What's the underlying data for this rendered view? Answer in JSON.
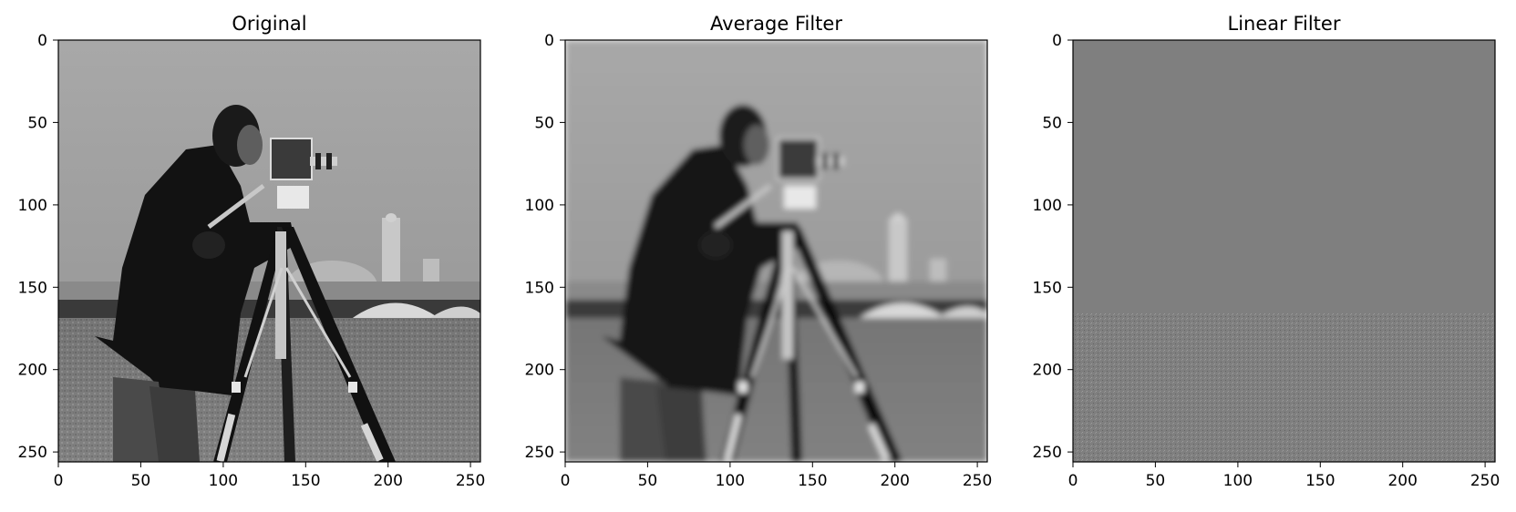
{
  "figure": {
    "panels": [
      {
        "title": "Original",
        "variant": "original",
        "x_ticks": [
          "0",
          "50",
          "100",
          "150",
          "200",
          "250"
        ],
        "y_ticks": [
          "0",
          "50",
          "100",
          "150",
          "200",
          "250"
        ]
      },
      {
        "title": "Average Filter",
        "variant": "average",
        "x_ticks": [
          "0",
          "50",
          "100",
          "150",
          "200",
          "250"
        ],
        "y_ticks": [
          "0",
          "50",
          "100",
          "150",
          "200",
          "250"
        ]
      },
      {
        "title": "Linear Filter",
        "variant": "linear",
        "x_ticks": [
          "0",
          "50",
          "100",
          "150",
          "200",
          "250"
        ],
        "y_ticks": [
          "0",
          "50",
          "100",
          "150",
          "200",
          "250"
        ]
      }
    ],
    "image_extent": [
      0,
      255
    ],
    "image_colormap": "gray",
    "image_subject": "cameraman-photograph"
  }
}
